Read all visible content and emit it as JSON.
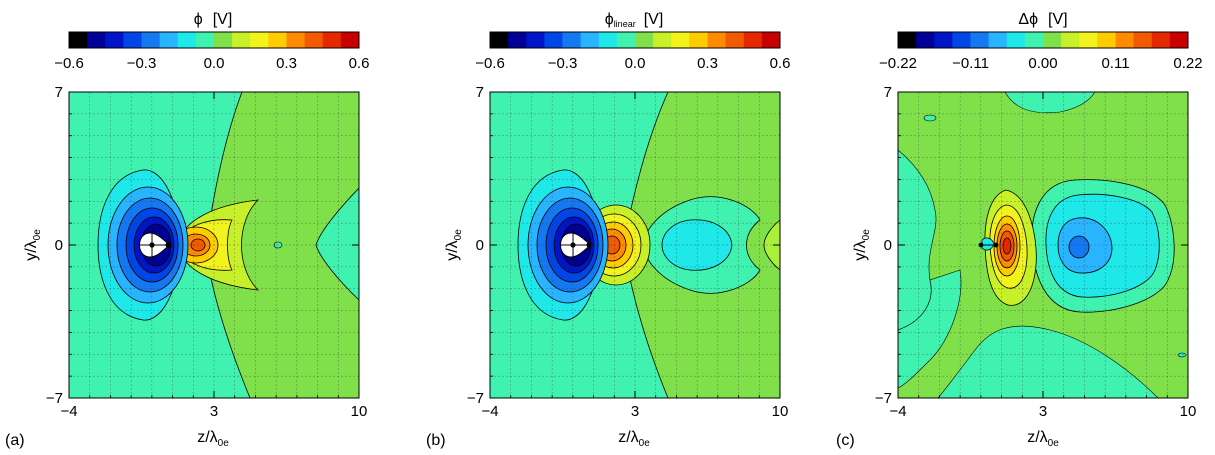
{
  "chart_data": [
    {
      "type": "heatmap",
      "panel_label": "(a)",
      "colorbar": {
        "title": "ϕ",
        "unit": "[V]",
        "min": -0.6,
        "max": 0.6,
        "ticks": [
          "−0.6",
          "−0.3",
          "0.0",
          "0.3",
          "0.6"
        ]
      },
      "xlabel": "z/λ",
      "xlabel_sub": "0e",
      "ylabel": "y/λ",
      "ylabel_sub": "0e",
      "x_ticks": [
        "−4",
        "3",
        "10"
      ],
      "y_ticks": [
        "7",
        "0",
        "−7"
      ],
      "xlim": [
        -4,
        10
      ],
      "ylim": [
        -7,
        7
      ],
      "grid": true,
      "features": [
        {
          "type": "negative well",
          "z": -0.8,
          "y": 0,
          "peak": -0.6
        },
        {
          "type": "positive lobe",
          "z": 2.4,
          "y": 0,
          "peak": 0.33
        },
        {
          "type": "weak positive wake",
          "z": 7.5,
          "y": 0,
          "peak": 0.04
        }
      ]
    },
    {
      "type": "heatmap",
      "panel_label": "(b)",
      "colorbar": {
        "title": "ϕ",
        "title_sub": "linear",
        "unit": "[V]",
        "min": -0.6,
        "max": 0.6,
        "ticks": [
          "−0.6",
          "−0.3",
          "0.0",
          "0.3",
          "0.6"
        ]
      },
      "xlabel": "z/λ",
      "xlabel_sub": "0e",
      "ylabel": "y/λ",
      "ylabel_sub": "0e",
      "x_ticks": [
        "−4",
        "3",
        "10"
      ],
      "y_ticks": [
        "7",
        "0",
        "−7"
      ],
      "xlim": [
        -4,
        10
      ],
      "ylim": [
        -7,
        7
      ],
      "grid": true,
      "features": [
        {
          "type": "negative well",
          "z": -0.8,
          "y": 0,
          "peak": -0.6
        },
        {
          "type": "positive lobe",
          "z": 2.2,
          "y": 0,
          "peak": 0.45
        },
        {
          "type": "negative trough",
          "z": 5.8,
          "y": 0,
          "peak": -0.1
        },
        {
          "type": "positive wake",
          "z": 9.5,
          "y": 0,
          "peak": 0.05
        }
      ]
    },
    {
      "type": "heatmap",
      "panel_label": "(c)",
      "colorbar": {
        "title": "Δϕ",
        "unit": "[V]",
        "min": -0.22,
        "max": 0.22,
        "ticks": [
          "−0.22",
          "−0.11",
          "0.00",
          "0.11",
          "0.22"
        ]
      },
      "xlabel": "z/λ",
      "xlabel_sub": "0e",
      "ylabel": "y/λ",
      "ylabel_sub": "0e",
      "x_ticks": [
        "−4",
        "3",
        "10"
      ],
      "y_ticks": [
        "7",
        "0",
        "−7"
      ],
      "xlim": [
        -4,
        10
      ],
      "ylim": [
        -7,
        7
      ],
      "grid": true,
      "features": [
        {
          "type": "positive lobe",
          "z": 1.0,
          "y": 0,
          "peak": 0.2
        },
        {
          "type": "negative trough",
          "z": 5.0,
          "y": 0,
          "peak": -0.13
        }
      ]
    }
  ]
}
